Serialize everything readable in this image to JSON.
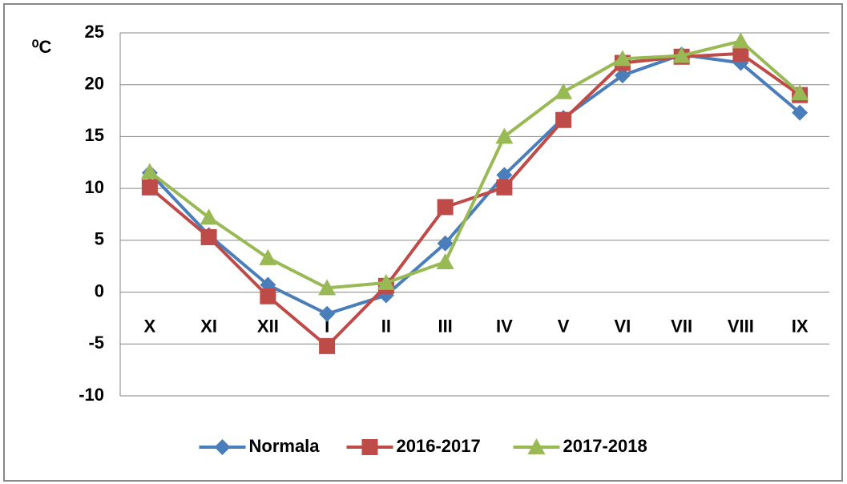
{
  "chart_data": {
    "type": "line",
    "y_label": "⁰C",
    "categories": [
      "X",
      "XI",
      "XII",
      "I",
      "II",
      "III",
      "IV",
      "V",
      "VI",
      "VII",
      "VIII",
      "IX"
    ],
    "series": [
      {
        "name": "Normala",
        "color": "#4a7ebb",
        "marker": "diamond",
        "values": [
          11.5,
          5.5,
          0.7,
          -2.1,
          -0.3,
          4.7,
          11.3,
          16.8,
          20.9,
          22.9,
          22.1,
          17.3
        ]
      },
      {
        "name": "2016-2017",
        "color": "#be4b48",
        "marker": "square",
        "values": [
          10.1,
          5.3,
          -0.4,
          -5.2,
          0.6,
          8.2,
          10.1,
          16.6,
          22.1,
          22.7,
          23.0,
          19.0
        ]
      },
      {
        "name": "2017-2018",
        "color": "#98b954",
        "marker": "triangle",
        "values": [
          11.6,
          7.2,
          3.3,
          0.4,
          0.9,
          2.9,
          15.0,
          19.3,
          22.5,
          22.8,
          24.2,
          19.2
        ]
      }
    ],
    "ylim": [
      -10,
      25
    ],
    "yticks": [
      -10,
      -5,
      0,
      5,
      10,
      15,
      20,
      25
    ],
    "grid": true,
    "legend": "bottom"
  }
}
